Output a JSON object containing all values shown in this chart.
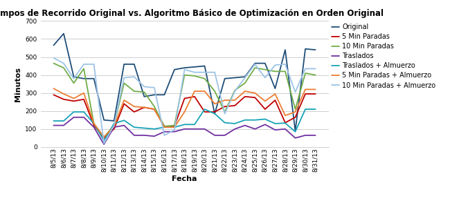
{
  "title": "Tiempos de Recorrido Original vs. Algoritmo Básico de Optimización en Orden Original",
  "xlabel": "Fecha",
  "ylabel": "Minutos",
  "dates": [
    "8/5/13",
    "8/6/13",
    "8/7/13",
    "8/8/13",
    "8/9/13",
    "8/10/13",
    "8/11/13",
    "8/12/13",
    "8/13/13",
    "8/14/13",
    "8/15/13",
    "8/16/13",
    "8/17/13",
    "8/18/13",
    "8/19/13",
    "8/20/13",
    "8/21/13",
    "8/22/13",
    "8/23/13",
    "8/24/13",
    "8/25/13",
    "8/26/13",
    "8/27/13",
    "8/28/13",
    "8/29/13",
    "8/30/13",
    "8/31/13"
  ],
  "series": {
    "Original": [
      565,
      630,
      390,
      380,
      380,
      150,
      145,
      460,
      460,
      280,
      290,
      290,
      430,
      440,
      445,
      450,
      185,
      380,
      385,
      390,
      465,
      465,
      325,
      540,
      90,
      545,
      540
    ],
    "5 Min Paradas": [
      290,
      265,
      255,
      265,
      120,
      50,
      100,
      240,
      195,
      220,
      210,
      115,
      115,
      270,
      280,
      195,
      195,
      225,
      230,
      280,
      275,
      210,
      260,
      135,
      165,
      295,
      295
    ],
    "10 Min Paradas": [
      465,
      440,
      355,
      435,
      130,
      55,
      120,
      355,
      310,
      305,
      225,
      115,
      120,
      400,
      395,
      380,
      310,
      195,
      315,
      355,
      440,
      430,
      420,
      420,
      210,
      410,
      400
    ],
    "Traslados": [
      120,
      120,
      165,
      165,
      110,
      15,
      110,
      120,
      65,
      65,
      60,
      85,
      85,
      100,
      100,
      100,
      65,
      65,
      100,
      120,
      100,
      125,
      95,
      100,
      50,
      65,
      65
    ],
    "Traslados + Almuerzo": [
      145,
      145,
      195,
      195,
      130,
      35,
      130,
      148,
      110,
      105,
      100,
      110,
      110,
      125,
      125,
      210,
      185,
      135,
      130,
      150,
      150,
      155,
      130,
      133,
      85,
      210,
      210
    ],
    "5 Min Paradas + Almuerzo": [
      325,
      295,
      270,
      300,
      130,
      55,
      115,
      260,
      225,
      220,
      210,
      110,
      110,
      195,
      310,
      310,
      240,
      260,
      260,
      310,
      300,
      255,
      295,
      175,
      195,
      320,
      320
    ],
    "10 Min Paradas + Almuerzo": [
      495,
      465,
      380,
      460,
      460,
      20,
      120,
      385,
      390,
      335,
      330,
      65,
      95,
      430,
      415,
      415,
      415,
      185,
      310,
      385,
      460,
      385,
      455,
      460,
      305,
      435,
      435
    ]
  },
  "colors": {
    "Original": "#1F4E79",
    "5 Min Paradas": "#C00000",
    "10 Min Paradas": "#70AD47",
    "Traslados": "#7030A0",
    "Traslados + Almuerzo": "#17A3B8",
    "5 Min Paradas + Almuerzo": "#ED7D31",
    "10 Min Paradas + Almuerzo": "#9DC3E6"
  },
  "ylim": [
    0,
    700
  ],
  "yticks": [
    0,
    100,
    200,
    300,
    400,
    500,
    600,
    700
  ],
  "background_color": "#FFFFFF",
  "grid_color": "#C8C8C8",
  "title_fontsize": 8.5,
  "axis_label_fontsize": 8,
  "tick_fontsize": 6.5,
  "legend_fontsize": 7.0,
  "linewidth": 1.3
}
